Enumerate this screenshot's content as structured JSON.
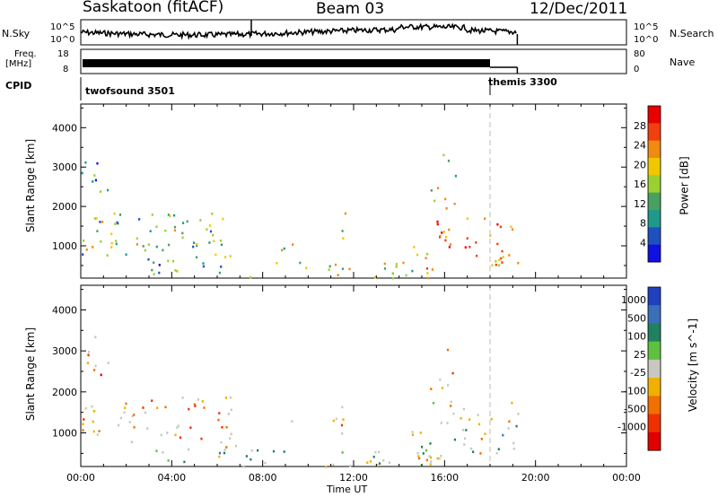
{
  "header": {
    "station": "Saskatoon (fitACF)",
    "beam": "Beam 03",
    "date": "12/Dec/2011"
  },
  "noise_panel": {
    "left_label": "N.Sky",
    "left_tick_top": "10^5",
    "left_tick_bottom": "10^0",
    "right_tick_top": "10^5",
    "right_tick_bottom": "10^0",
    "right_label": "N.Search"
  },
  "freq_panel": {
    "left_label_top": "Freq.",
    "left_label_bottom": "[MHz]",
    "left_tick_top": "18",
    "left_tick_bottom": "8",
    "right_tick_top": "80",
    "right_tick_bottom": "0",
    "right_label": "Nave"
  },
  "cpid_panel": {
    "label": "CPID",
    "program_1": "twofsound 3501",
    "program_2": "themis 3300"
  },
  "colors": {
    "power_scale": [
      "#1010e0",
      "#2050c0",
      "#1f9a8a",
      "#4aa060",
      "#9ad030",
      "#f0c800",
      "#f08a10",
      "#f04010",
      "#e80000"
    ],
    "velocity_scale": [
      "#2040c0",
      "#3a70b8",
      "#208060",
      "#60c040",
      "#c8c8c0",
      "#f0b000",
      "#f07000",
      "#f03000",
      "#e00000"
    ]
  },
  "chart_data": [
    {
      "type": "heatmap",
      "name": "power",
      "ylabel": "Slant Range [km]",
      "x_ticks": [
        "00:00",
        "04:00",
        "08:00",
        "12:00",
        "16:00",
        "20:00",
        "00:00"
      ],
      "y_ticks": [
        "1000",
        "2000",
        "3000",
        "4000"
      ],
      "xlim_hours": [
        0,
        24
      ],
      "ylim_km": [
        180,
        4600
      ],
      "colorbar_label": "Power [dB]",
      "colorbar_ticks": [
        "4",
        "8",
        "12",
        "16",
        "20",
        "24",
        "28"
      ],
      "colorbar_range": [
        0,
        32
      ],
      "scatter_regions": [
        {
          "t0": 0.0,
          "t1": 6.8,
          "r0": 700,
          "r1": 1900,
          "level": 0.45
        },
        {
          "t0": 0.0,
          "t1": 1.3,
          "r0": 2400,
          "r1": 3400,
          "level": 0.25
        },
        {
          "t0": 2.9,
          "t1": 6.8,
          "r0": 300,
          "r1": 700,
          "level": 0.3
        },
        {
          "t0": 7.0,
          "t1": 15.4,
          "r0": 200,
          "r1": 600,
          "level": 0.55
        },
        {
          "t0": 14.5,
          "t1": 19.2,
          "r0": 400,
          "r1": 1800,
          "level": 0.7
        },
        {
          "t0": 15.2,
          "t1": 16.6,
          "r0": 1900,
          "r1": 2500,
          "level": 0.6
        },
        {
          "t0": 15.9,
          "t1": 16.5,
          "r0": 2700,
          "r1": 3400,
          "level": 0.3
        },
        {
          "t0": 8.8,
          "t1": 9.3,
          "r0": 900,
          "r1": 1500,
          "level": 0.5
        },
        {
          "t0": 11.0,
          "t1": 11.8,
          "r0": 900,
          "r1": 1900,
          "level": 0.55
        }
      ]
    },
    {
      "type": "heatmap",
      "name": "velocity",
      "xlabel": "Time UT",
      "ylabel": "Slant Range [km]",
      "x_ticks": [
        "00:00",
        "04:00",
        "08:00",
        "12:00",
        "16:00",
        "20:00",
        "00:00"
      ],
      "y_ticks": [
        "1000",
        "2000",
        "3000",
        "4000"
      ],
      "xlim_hours": [
        0,
        24
      ],
      "ylim_km": [
        180,
        4600
      ],
      "colorbar_label": "Velocity [m s^-1]",
      "colorbar_ticks": [
        "1000",
        "500",
        "100",
        "25",
        "-25",
        "-100",
        "-500",
        "-1000"
      ],
      "scatter_regions": [
        {
          "t0": 0.0,
          "t1": 6.8,
          "r0": 700,
          "r1": 1900,
          "level": 0.7
        },
        {
          "t0": 0.0,
          "t1": 1.3,
          "r0": 2400,
          "r1": 3400,
          "level": 0.75
        },
        {
          "t0": 2.9,
          "t1": 6.8,
          "r0": 300,
          "r1": 700,
          "level": 0.45
        },
        {
          "t0": 7.0,
          "t1": 15.4,
          "r0": 200,
          "r1": 600,
          "level": 0.45
        },
        {
          "t0": 14.5,
          "t1": 19.2,
          "r0": 400,
          "r1": 1800,
          "level": 0.45
        },
        {
          "t0": 15.2,
          "t1": 16.6,
          "r0": 1900,
          "r1": 2500,
          "level": 0.72
        },
        {
          "t0": 15.9,
          "t1": 16.5,
          "r0": 2700,
          "r1": 3400,
          "level": 0.72
        },
        {
          "t0": 8.8,
          "t1": 9.3,
          "r0": 900,
          "r1": 1500,
          "level": 0.6
        },
        {
          "t0": 11.0,
          "t1": 11.8,
          "r0": 900,
          "r1": 1900,
          "level": 0.65
        }
      ]
    }
  ]
}
